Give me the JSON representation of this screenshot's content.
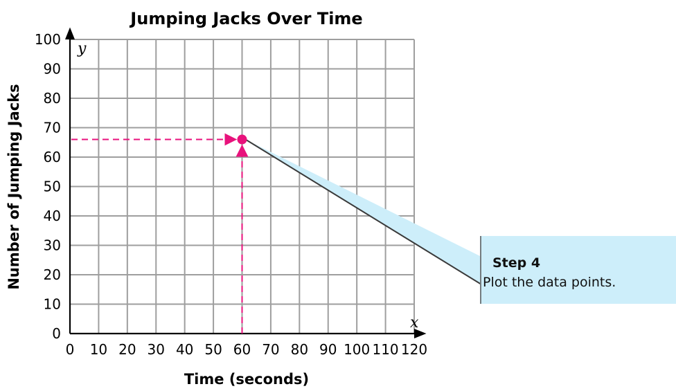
{
  "chart_data": {
    "type": "scatter",
    "title": "Jumping Jacks Over Time",
    "xlabel": "Time (seconds)",
    "ylabel": "Number of Jumping Jacks",
    "x_var": "x",
    "y_var": "y",
    "xlim": [
      0,
      120
    ],
    "ylim": [
      0,
      100
    ],
    "x_ticks": [
      0,
      10,
      20,
      30,
      40,
      50,
      60,
      70,
      80,
      90,
      100,
      110,
      120
    ],
    "y_ticks": [
      0,
      10,
      20,
      30,
      40,
      50,
      60,
      70,
      80,
      90,
      100
    ],
    "grid": true,
    "points": [
      {
        "x": 60,
        "y": 66
      }
    ],
    "point_color": "#e8127c",
    "guide_color": "#e8127c",
    "annotation": {
      "heading": "Step 4",
      "text": "Plot the data points.",
      "fill": "#cdeefa"
    }
  }
}
